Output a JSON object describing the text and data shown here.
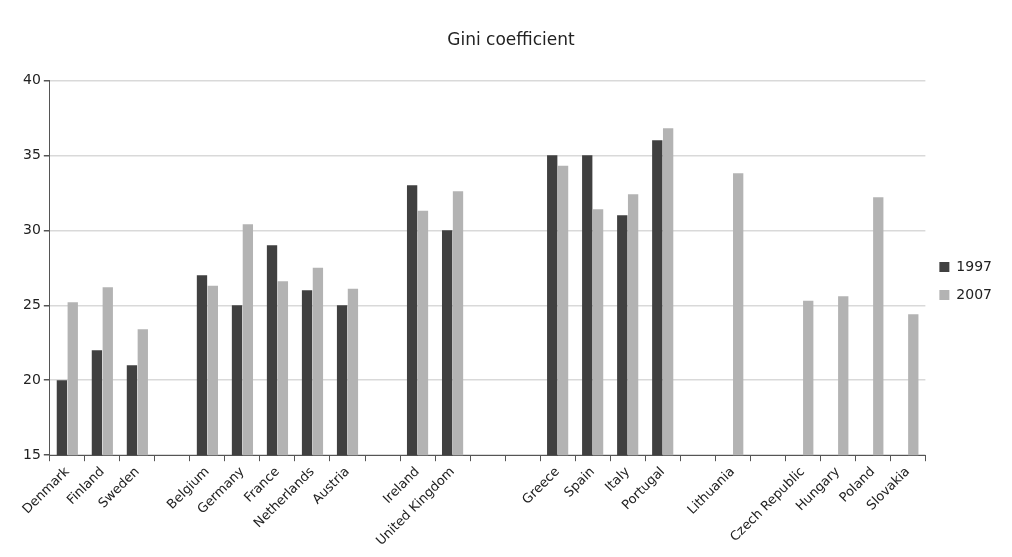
{
  "chart_data": {
    "type": "bar",
    "title": "Gini coefficient",
    "categories": [
      "Denmark",
      "Finland",
      "Sweden",
      null,
      "Belgium",
      "Germany",
      "France",
      "Netherlands",
      "Austria",
      null,
      "Ireland",
      "United Kingdom",
      null,
      null,
      "Greece",
      "Spain",
      "Italy",
      "Portugal",
      null,
      "Lithuania",
      null,
      "Czech Republic",
      "Hungary",
      "Poland",
      "Slovakia"
    ],
    "series": [
      {
        "name": "1997",
        "color": "#404040",
        "values": [
          20,
          22,
          21,
          null,
          27,
          25,
          29,
          26,
          25,
          null,
          33,
          30,
          null,
          null,
          35,
          35,
          31,
          36,
          null,
          null,
          null,
          null,
          null,
          null,
          null
        ]
      },
      {
        "name": "2007",
        "color": "#b3b3b3",
        "values": [
          25.2,
          26.2,
          23.4,
          null,
          26.3,
          30.4,
          26.6,
          27.5,
          26.1,
          null,
          31.3,
          32.6,
          null,
          null,
          34.3,
          31.4,
          32.4,
          36.8,
          null,
          33.8,
          null,
          25.3,
          25.6,
          32.2,
          24.4
        ]
      }
    ],
    "ylim": [
      15,
      40
    ],
    "yticks": [
      15,
      20,
      25,
      30,
      35,
      40
    ],
    "grid": "y",
    "legend": "right"
  }
}
